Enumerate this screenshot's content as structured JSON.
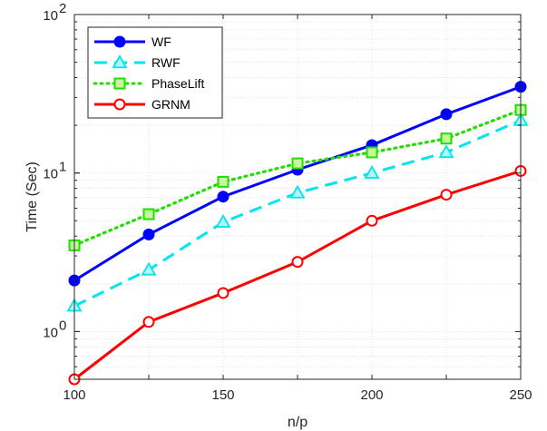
{
  "chart_data": {
    "type": "line",
    "title": "",
    "xlabel": "n/p",
    "ylabel": "Time (Sec)",
    "x": [
      100,
      125,
      150,
      175,
      200,
      225,
      250
    ],
    "xlim": [
      100,
      250
    ],
    "ylim": [
      0.5,
      100
    ],
    "yscale": "log",
    "grid": true,
    "legend_position": "top-left",
    "x_ticks": [
      "100",
      "150",
      "200",
      "250"
    ],
    "y_ticks": [
      {
        "base": "10",
        "exp": "0"
      },
      {
        "base": "10",
        "exp": "1"
      },
      {
        "base": "10",
        "exp": "2"
      }
    ],
    "series": [
      {
        "name": "WF",
        "color": "#0000ff",
        "style": "solid",
        "marker": "circle",
        "values": [
          2.1,
          4.1,
          7.1,
          10.5,
          15,
          23.5,
          35
        ]
      },
      {
        "name": "RWF",
        "color": "#00e5ee",
        "style": "dashed",
        "marker": "triangle",
        "values": [
          1.45,
          2.45,
          4.9,
          7.5,
          10,
          13.5,
          21.5
        ]
      },
      {
        "name": "PhaseLift",
        "color": "#22dd00",
        "style": "dotted",
        "marker": "square",
        "values": [
          3.5,
          5.5,
          8.8,
          11.5,
          13.5,
          16.5,
          25
        ]
      },
      {
        "name": "GRNM",
        "color": "#ff0000",
        "style": "solid",
        "marker": "circle",
        "values": [
          0.5,
          1.15,
          1.75,
          2.75,
          5,
          7.3,
          10.3
        ]
      }
    ]
  }
}
